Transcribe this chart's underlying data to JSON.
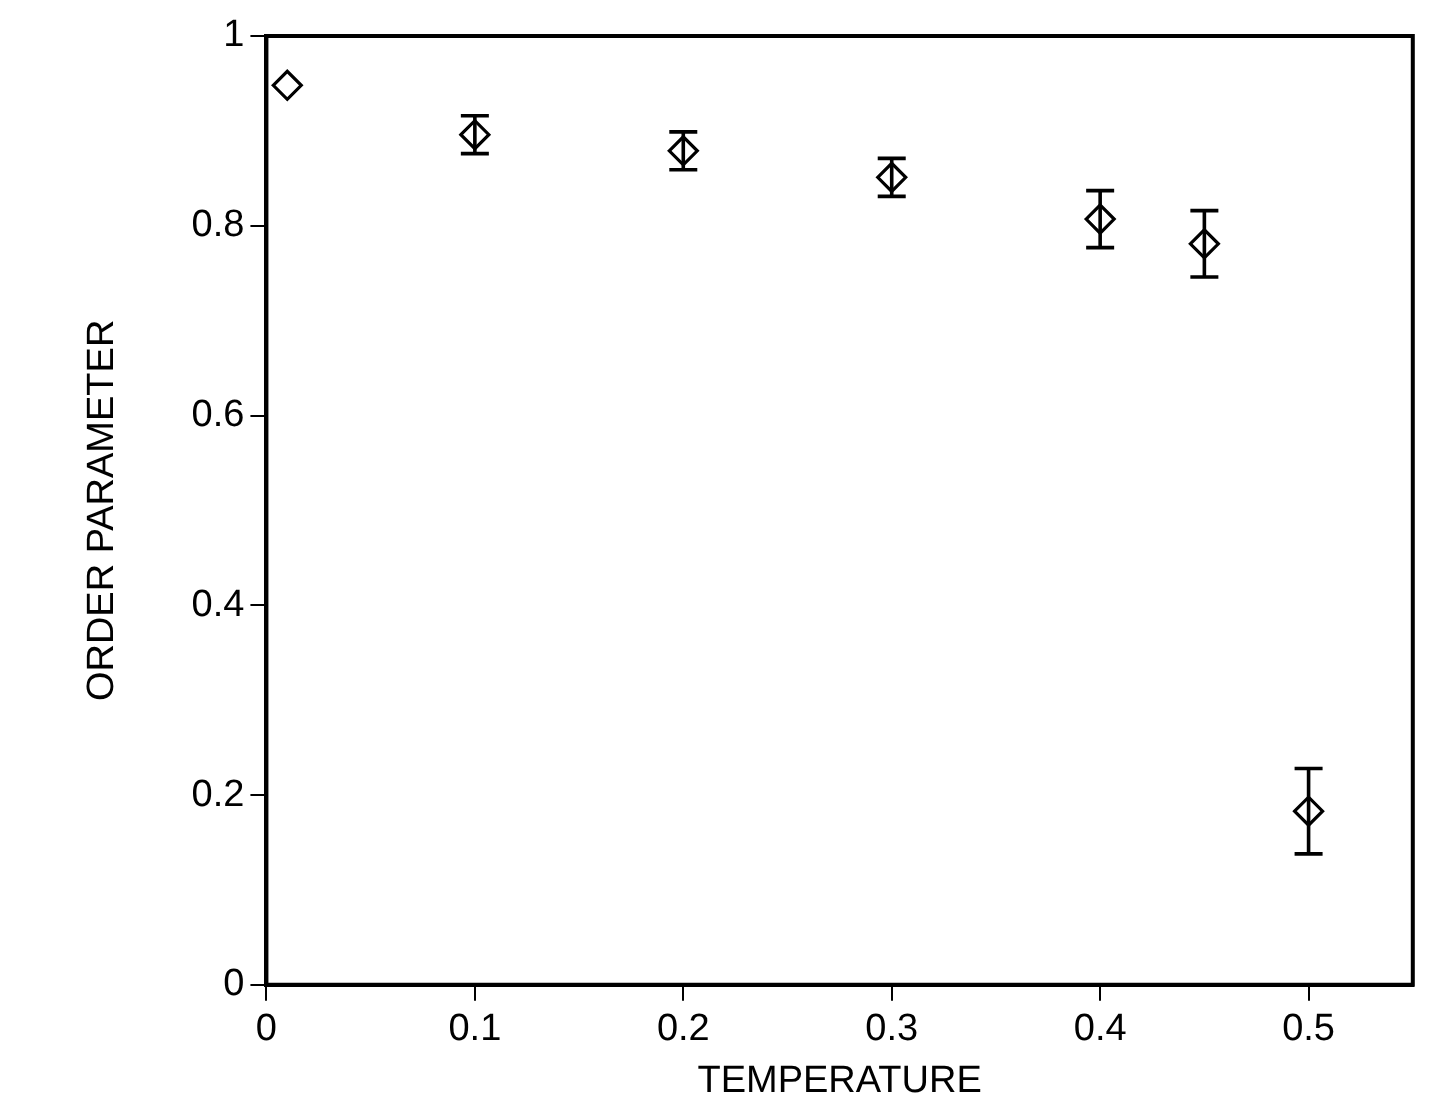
{
  "chart_data": {
    "type": "scatter",
    "xlabel": "TEMPERATURE",
    "ylabel": "ORDER PARAMETER",
    "x": [
      0.01,
      0.1,
      0.2,
      0.3,
      0.4,
      0.45,
      0.5
    ],
    "series": [
      {
        "color": "#000000",
        "values": [
          0.948,
          0.896,
          0.879,
          0.851,
          0.807,
          0.781,
          0.183
        ],
        "errors": [
          null,
          0.02,
          0.02,
          0.02,
          0.03,
          0.035,
          0.045
        ]
      }
    ],
    "xlim": [
      0,
      0.55
    ],
    "ylim": [
      0,
      1
    ],
    "xticks": [
      0,
      0.1,
      0.2,
      0.3,
      0.4,
      0.5
    ],
    "yticks": [
      0,
      0.2,
      0.4,
      0.6,
      0.8,
      1
    ],
    "grid": false,
    "legend": false,
    "marker": "diamond"
  }
}
